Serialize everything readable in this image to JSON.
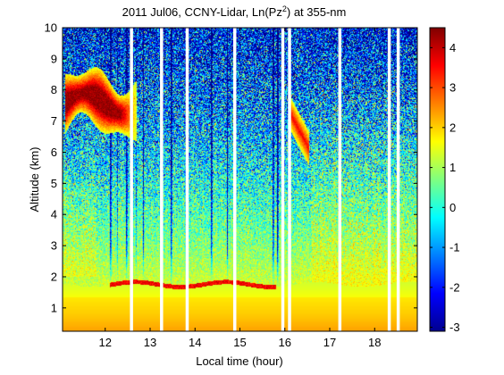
{
  "chart_data": {
    "type": "heatmap",
    "title": {
      "prefix": "2011 Jul06, CCNY-Lidar, Ln(Pz",
      "sup": "2",
      "suffix": ") at 355-nm"
    },
    "xlabel": "Local time (hour)",
    "ylabel": "Altitude (km)",
    "xlim": [
      11.05,
      18.95
    ],
    "ylim": [
      0.25,
      10
    ],
    "x_ticks": [
      "12",
      "13",
      "14",
      "15",
      "16",
      "17",
      "18"
    ],
    "y_ticks": [
      "1",
      "2",
      "3",
      "4",
      "5",
      "6",
      "7",
      "8",
      "9",
      "10"
    ],
    "colorbar": {
      "range": [
        -3.1,
        4.5
      ],
      "ticks": [
        "-3",
        "-2",
        "-1",
        "0",
        "1",
        "2",
        "3",
        "4"
      ],
      "colormap": "jet"
    },
    "data_gaps_hour": [
      12.58,
      13.25,
      13.82,
      14.88,
      15.95,
      16.1,
      17.22,
      18.32,
      18.52
    ],
    "features": {
      "boundary_layer_top_km": 1.75,
      "surface_layer_value": 2.4,
      "cirrus": {
        "time_range_hour": [
          11.1,
          12.7
        ],
        "altitude_km": [
          6.8,
          8.6
        ],
        "peak_value": 4.3
      },
      "cloud_patch": {
        "time_range_hour": [
          16.1,
          16.55
        ],
        "altitude_km": [
          5.9,
          7.6
        ],
        "peak_value": 3.6
      },
      "upper_noise_range": [
        -3,
        1.5
      ]
    }
  }
}
